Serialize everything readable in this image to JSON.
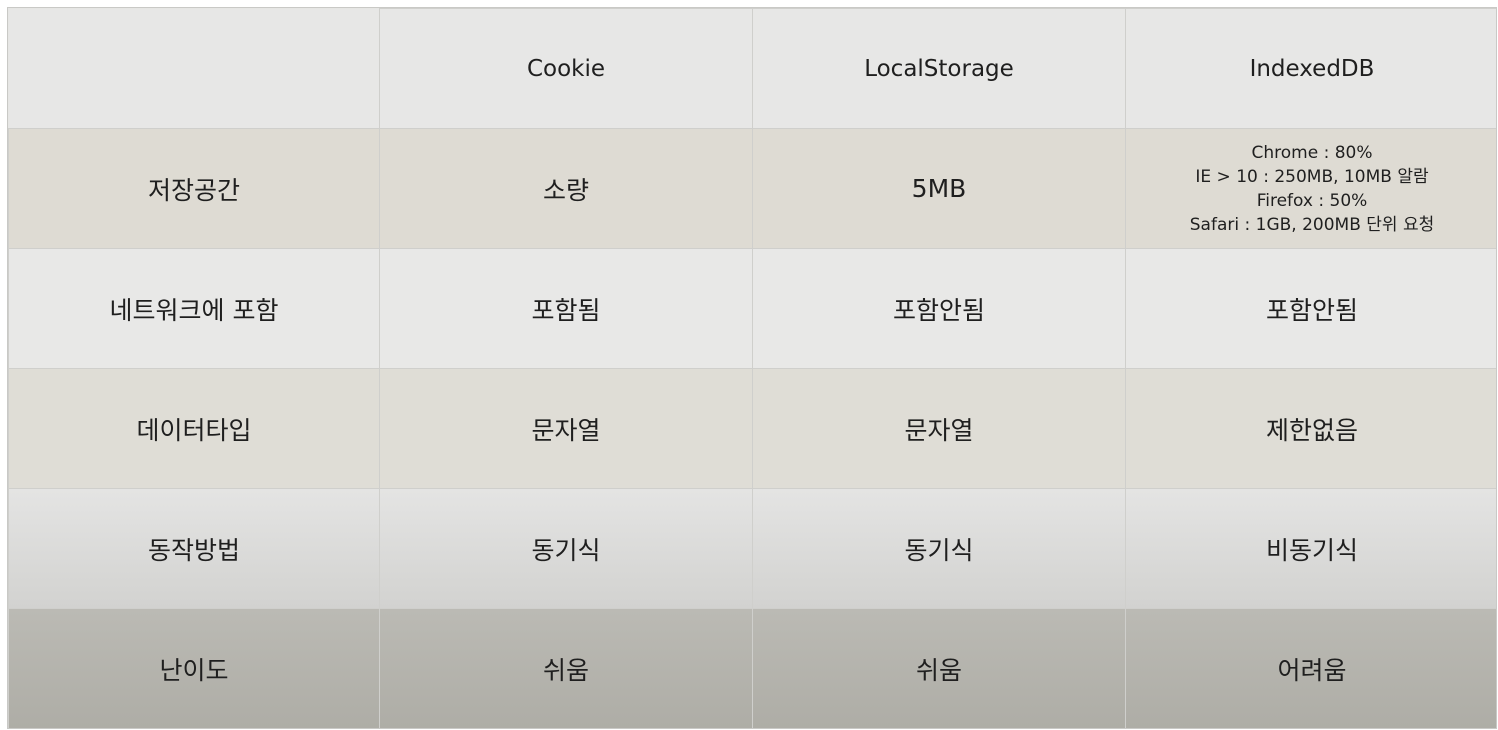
{
  "table": {
    "headers": [
      "",
      "Cookie",
      "LocalStorage",
      "IndexedDB"
    ],
    "rows": [
      {
        "label": "저장공간",
        "cookie": "소량",
        "localstorage": "5MB",
        "indexeddb_lines": [
          "Chrome : 80%",
          "IE > 10 : 250MB, 10MB 알람",
          "Firefox : 50%",
          "Safari : 1GB, 200MB 단위 요청"
        ]
      },
      {
        "label": "네트워크에 포함",
        "cookie": "포함됨",
        "localstorage": "포함안됨",
        "indexeddb": "포함안됨"
      },
      {
        "label": "데이터타입",
        "cookie": "문자열",
        "localstorage": "문자열",
        "indexeddb": "제한없음"
      },
      {
        "label": "동작방법",
        "cookie": "동기식",
        "localstorage": "동기식",
        "indexeddb": "비동기식"
      },
      {
        "label": "난이도",
        "cookie": "쉬움",
        "localstorage": "쉬움",
        "indexeddb": "어려움"
      }
    ]
  }
}
